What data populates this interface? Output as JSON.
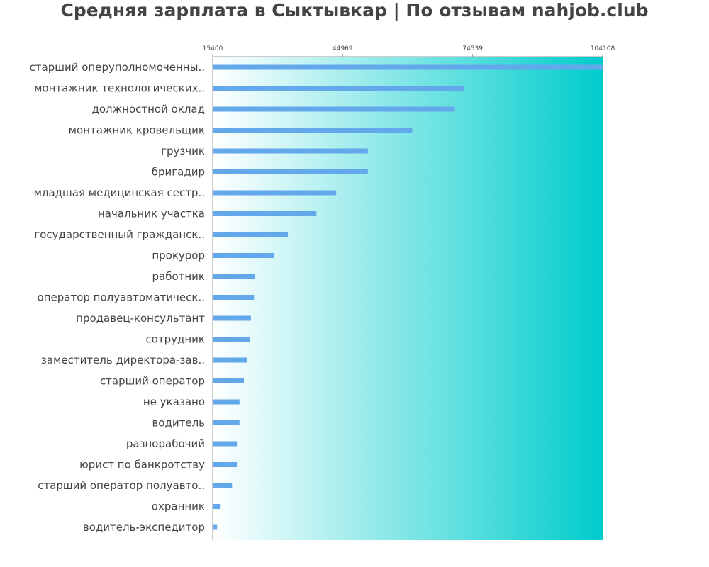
{
  "chart_data": {
    "type": "bar",
    "orientation": "horizontal",
    "title": "Средняя зарплата в Сыктывкар | По отзывам nahjob.club",
    "xlabel": "",
    "ylabel": "",
    "xlim": [
      15400,
      104108
    ],
    "xticks": [
      15400,
      44969,
      74539,
      104108
    ],
    "grid": false,
    "colors": {
      "bar": "#64a8ec",
      "gradient_start": "#ffffff",
      "gradient_end": "#00cccc",
      "text": "#444444",
      "axis": "#999999"
    },
    "categories": [
      "старший оперуполномоченны..",
      "монтажник технологических..",
      "должностной оклад",
      "монтажник кровельщик",
      "грузчик",
      "бригадир",
      "младшая медицинская сестр..",
      "начальник участка",
      "государственный гражданск..",
      "прокурор",
      "работник",
      "оператор полуавтоматическ..",
      "продавец-консультант",
      "сотрудник",
      "заместитель директора-зав..",
      "старший оператор",
      "не указано",
      "водитель",
      "разнорабочий",
      "юрист по банкротству",
      "старший оператор полуавто..",
      "охранник",
      "водитель-экспедитор"
    ],
    "values": [
      104108,
      72700,
      70500,
      60800,
      50700,
      50700,
      43500,
      39000,
      32500,
      29300,
      25000,
      24800,
      24100,
      23900,
      23200,
      22500,
      21500,
      21500,
      20900,
      20900,
      19800,
      17200,
      16400
    ]
  }
}
